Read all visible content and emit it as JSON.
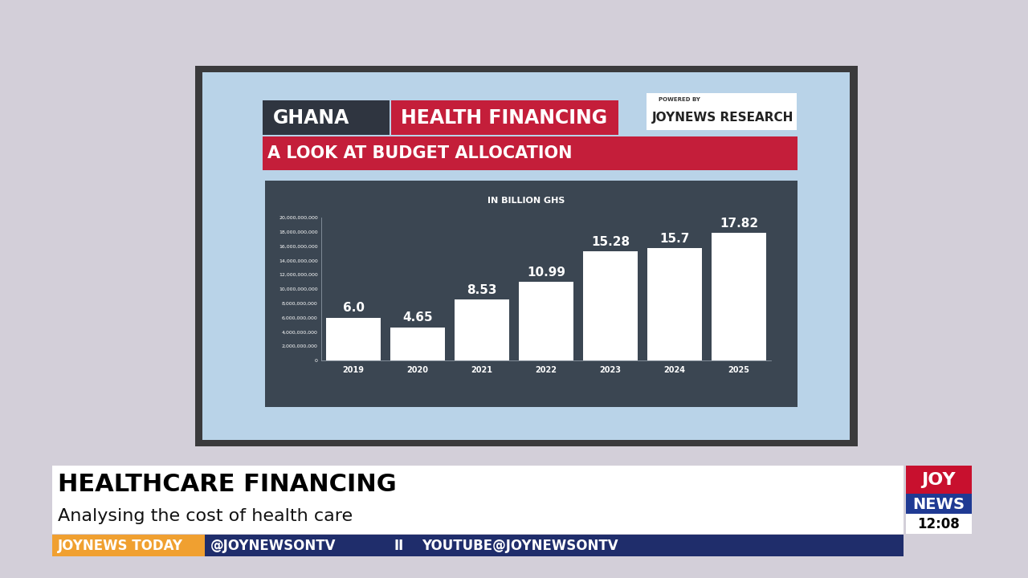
{
  "header": {
    "country": "GHANA",
    "title": "HEALTH FINANCING",
    "powered_by": "POWERED BY",
    "source": "JOYNEWS RESEARCH",
    "subtitle": "A LOOK AT BUDGET ALLOCATION"
  },
  "chart_data": {
    "type": "bar",
    "subtitle": "IN BILLION GHS",
    "categories": [
      "2019",
      "2020",
      "2021",
      "2022",
      "2023",
      "2024",
      "2025"
    ],
    "values": [
      6000000000,
      4650000000,
      8530000000,
      10990000000,
      15280000000,
      15700000000,
      17820000000
    ],
    "value_labels": [
      "6.0",
      "4.65",
      "8.53",
      "10.99",
      "15.28",
      "15.7",
      "17.82"
    ],
    "data_labels": true,
    "color": "#ffffff",
    "grid": false,
    "ylim": [
      0,
      20000000000
    ],
    "yticks": [
      0,
      {
        "value": 2000000000,
        "label": "2,000,000,000"
      },
      {
        "value": 4000000000,
        "label": "4,000,000,000"
      },
      {
        "value": 6000000000,
        "label": "6,000,000,000"
      },
      {
        "value": 8000000000,
        "label": "8,000,000,000"
      },
      {
        "value": 10000000000,
        "label": "10,000,000,000"
      },
      {
        "value": 12000000000,
        "label": "12,000,000,000"
      },
      {
        "value": 14000000000,
        "label": "14,000,000,000"
      },
      {
        "value": 16000000000,
        "label": "16,000,000,000"
      },
      {
        "value": 18000000000,
        "label": "18,000,000,000"
      },
      {
        "value": 20000000000,
        "label": "20,000,000,000"
      }
    ]
  },
  "lower_third": {
    "headline": "HEALTHCARE FINANCING",
    "subheadline": "Analysing the cost of health care",
    "show": "JOYNEWS TODAY",
    "handles": [
      "@JOYNEWSONTV",
      "II",
      "YOUTUBE@JOYNEWSONTV"
    ]
  },
  "logo": {
    "top": "JOY",
    "bottom": "NEWS",
    "time": "12:08"
  }
}
